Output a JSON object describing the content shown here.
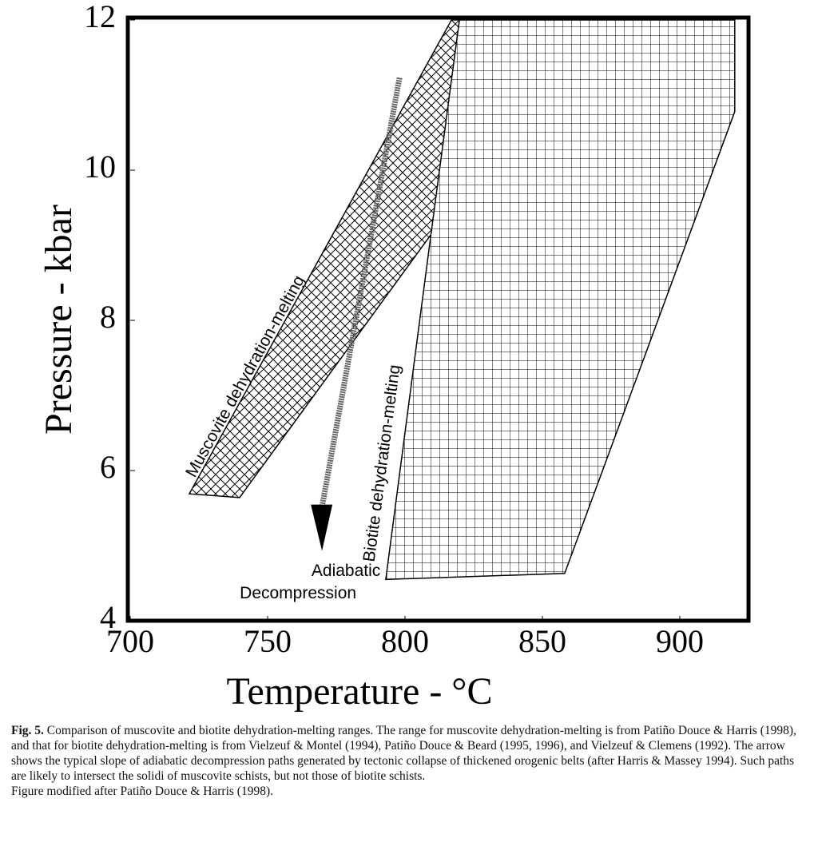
{
  "chart_data": {
    "type": "region",
    "xlabel": "Temperature - °C",
    "ylabel": "Pressure - kbar",
    "xlim": [
      700,
      925
    ],
    "ylim": [
      4,
      12
    ],
    "xticks": [
      700,
      750,
      800,
      850,
      900
    ],
    "yticks": [
      4,
      6,
      8,
      10,
      12
    ],
    "series": [
      {
        "name": "Muscovite dehydration-melting",
        "pattern": "crosshatch",
        "color": "#000000",
        "x": [
          721.5,
          739.8,
          866.3,
          816.9
        ],
        "y": [
          5.69,
          5.64,
          12,
          12
        ]
      },
      {
        "name": "Biotite dehydration-melting",
        "pattern": "grid",
        "color": "#000000",
        "x": [
          793.0,
          809.0,
          819.8,
          920.0,
          920.0,
          858.1
        ],
        "y": [
          4.55,
          9.02,
          12,
          12,
          10.78,
          4.63
        ]
      }
    ],
    "arrow": {
      "lines": [
        "Adiabatic",
        "Decompression"
      ],
      "x": [
        798.0,
        769.8
      ],
      "y": [
        11.23,
        4.93
      ]
    }
  },
  "caption": {
    "label": "Fig. 5.",
    "text": "Comparison of muscovite and biotite dehydration-melting ranges. The range for muscovite dehydration-melting is from Patiño Douce & Harris (1998), and that for biotite dehydration-melting is from Vielzeuf & Montel (1994), Patiño Douce & Beard (1995, 1996), and Vielzeuf & Clemens (1992). The arrow shows the typical slope of adiabatic decompression paths generated by tectonic collapse of thickened orogenic belts (after Harris & Massey 1994). Such paths are likely to intersect the solidi of muscovite schists, but not those of biotite schists.",
    "note": "Figure modified after Patiño Douce & Harris (1998)."
  }
}
